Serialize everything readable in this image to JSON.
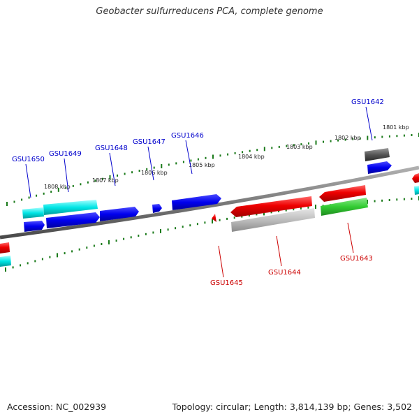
{
  "title": "Geobacter sulfurreducens PCA, complete genome",
  "footer": {
    "accession": "Accession: NC_002939",
    "summary": "Topology: circular; Length: 3,814,139 bp; Genes: 3,502"
  },
  "colors": {
    "forward": "#0000ee",
    "reverse": "#ee0000",
    "backbone": "#808080",
    "tick": "#1a7a1a",
    "cyan": "#00e5e5",
    "green": "#33cc33",
    "lightgray": "#bdbdbd",
    "darkgray": "#555555"
  },
  "tick_labels": [
    "1808 kbp",
    "1807 kbp",
    "1806 kbp",
    "1805 kbp",
    "1804 kbp",
    "1803 kbp",
    "1802 kbp",
    "1801 kbp"
  ],
  "gene_labels": [
    {
      "name": "GSU1650",
      "strand": "forward"
    },
    {
      "name": "GSU1649",
      "strand": "forward"
    },
    {
      "name": "GSU1648",
      "strand": "forward"
    },
    {
      "name": "GSU1647",
      "strand": "forward"
    },
    {
      "name": "GSU1646",
      "strand": "forward"
    },
    {
      "name": "GSU1642",
      "strand": "forward"
    },
    {
      "name": "GSU1645",
      "strand": "reverse"
    },
    {
      "name": "GSU1644",
      "strand": "reverse"
    },
    {
      "name": "GSU1643",
      "strand": "reverse"
    }
  ]
}
